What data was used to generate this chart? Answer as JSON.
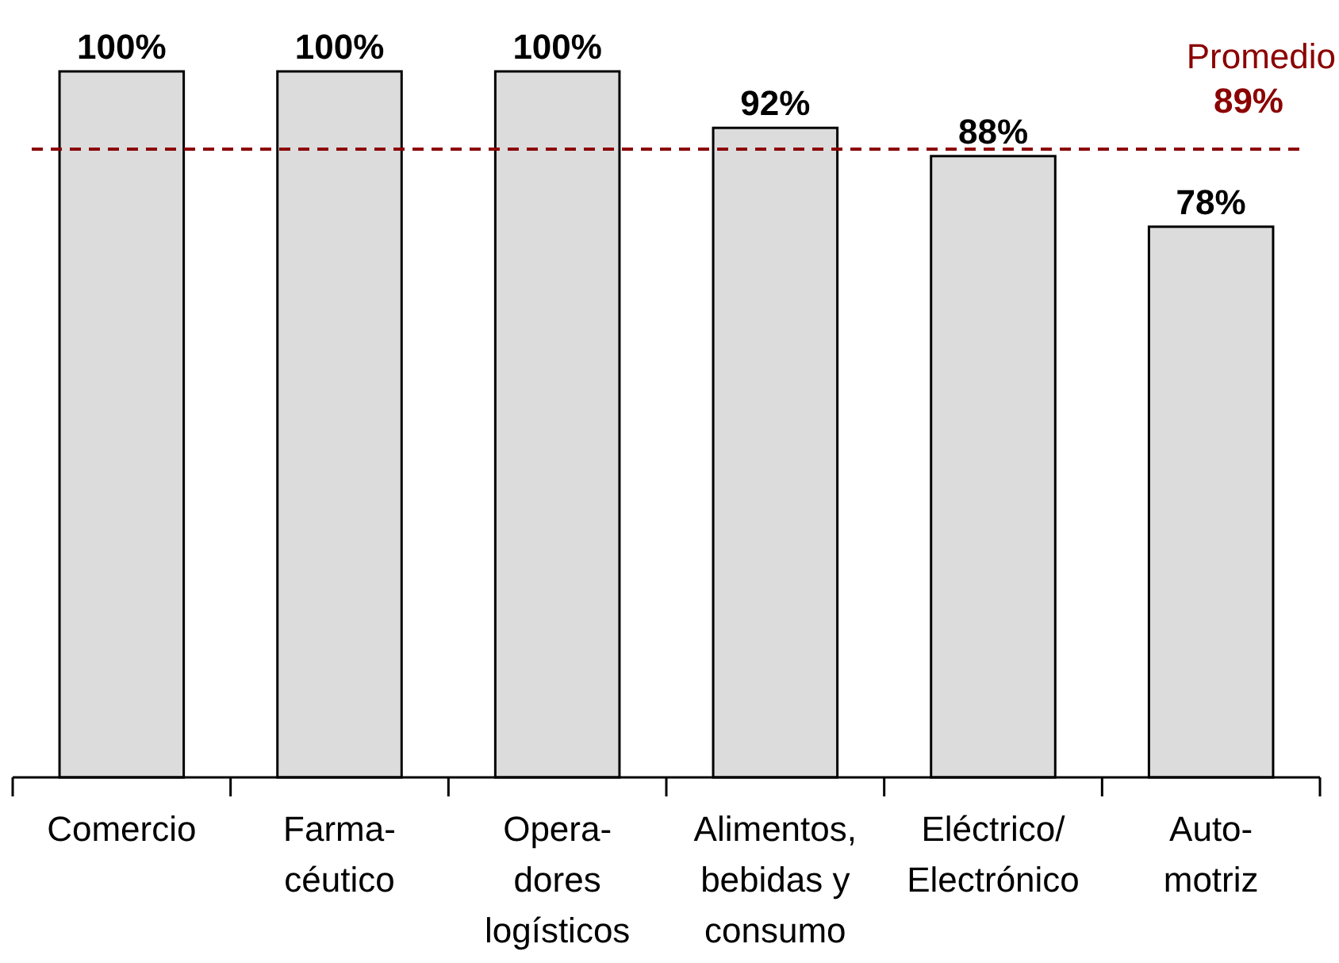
{
  "chart_data": {
    "type": "bar",
    "categories": [
      "Comercio",
      "Farma-\ncéutico",
      "Opera-\ndores\nlogísticos",
      "Alimentos,\nbebidas y\nconsumo",
      "Eléctrico/\nElectrónico",
      "Auto-\nmotriz"
    ],
    "values": [
      100,
      100,
      100,
      92,
      88,
      78
    ],
    "value_labels": [
      "100%",
      "100%",
      "100%",
      "92%",
      "88%",
      "78%"
    ],
    "color": "#dcdcdc",
    "ref_lines": [
      {
        "axis": "y",
        "value": 89,
        "label": "Promedio\n89%",
        "color": "#8b0000",
        "line_style": "dashed"
      }
    ]
  }
}
